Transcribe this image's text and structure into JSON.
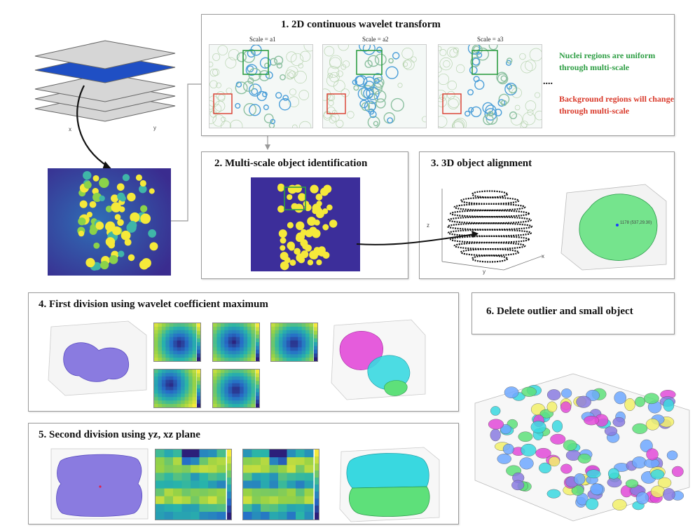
{
  "panels": {
    "p1": {
      "title": "1. 2D continuous wavelet transform",
      "scale_labels": [
        "Scale = a1",
        "Scale = a2",
        "Scale = a3"
      ],
      "ellipsis": "....",
      "note_green": "Nuclei regions are uniform through multi-scale",
      "note_red": "Background regions will change through multi-scale"
    },
    "p2": {
      "title": "2. Multi-scale object identification"
    },
    "p3": {
      "title": "3. 3D object alignment",
      "point_label": "1178 (537,29.30)"
    },
    "p4": {
      "title": "4. First division using wavelet coefficient maximum"
    },
    "p5": {
      "title": "5. Second division using yz, xz plane"
    },
    "p6": {
      "title": "6. Delete outlier and small object"
    }
  },
  "stack_axes": {
    "x": "x",
    "y": "y"
  },
  "plot3": {
    "z_label": "z",
    "y_label": "y",
    "x_label": "x"
  },
  "colors": {
    "nuclei_green": "#2e9e44",
    "background_red": "#d93a2b",
    "heat_dark": "#2c1f7a",
    "heat_yellow": "#f5e93a",
    "blob_purple": "#8a7be0",
    "blob_magenta": "#e24ad8",
    "blob_cyan": "#39d8e0",
    "blob_green": "#5ee07a"
  }
}
